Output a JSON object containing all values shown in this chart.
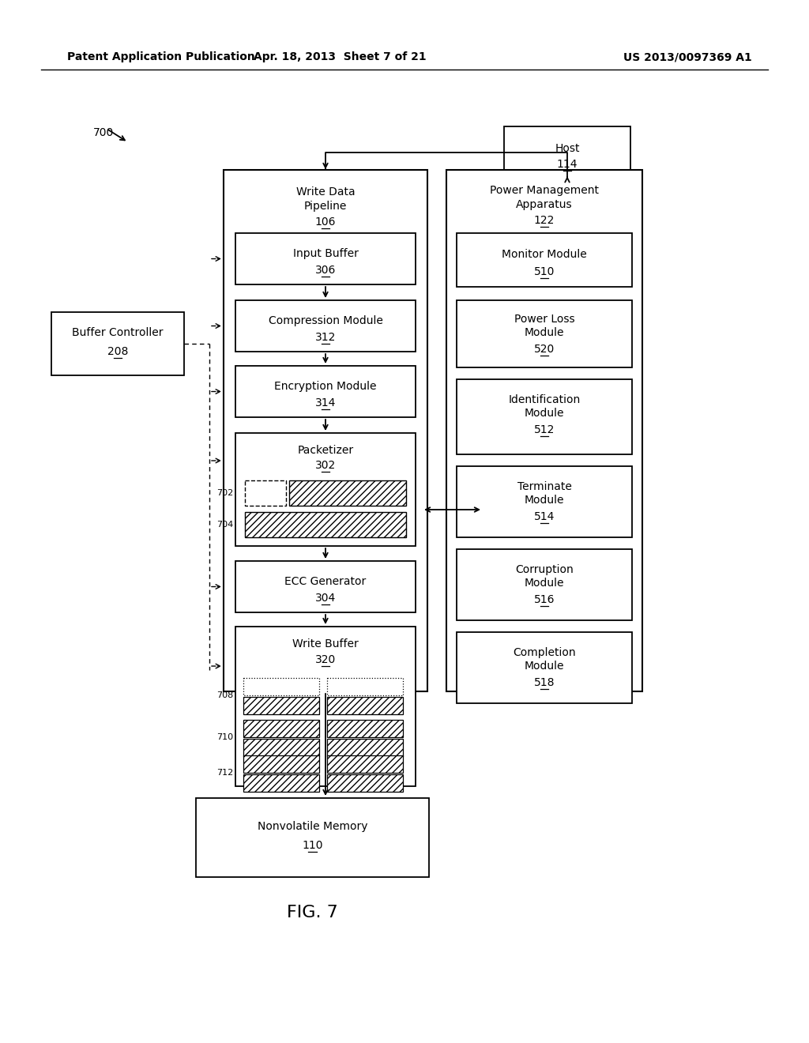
{
  "bg_color": "#ffffff",
  "header_left": "Patent Application Publication",
  "header_mid": "Apr. 18, 2013  Sheet 7 of 21",
  "header_right": "US 2013/0097369 A1",
  "fig_label": "FIG. 7"
}
